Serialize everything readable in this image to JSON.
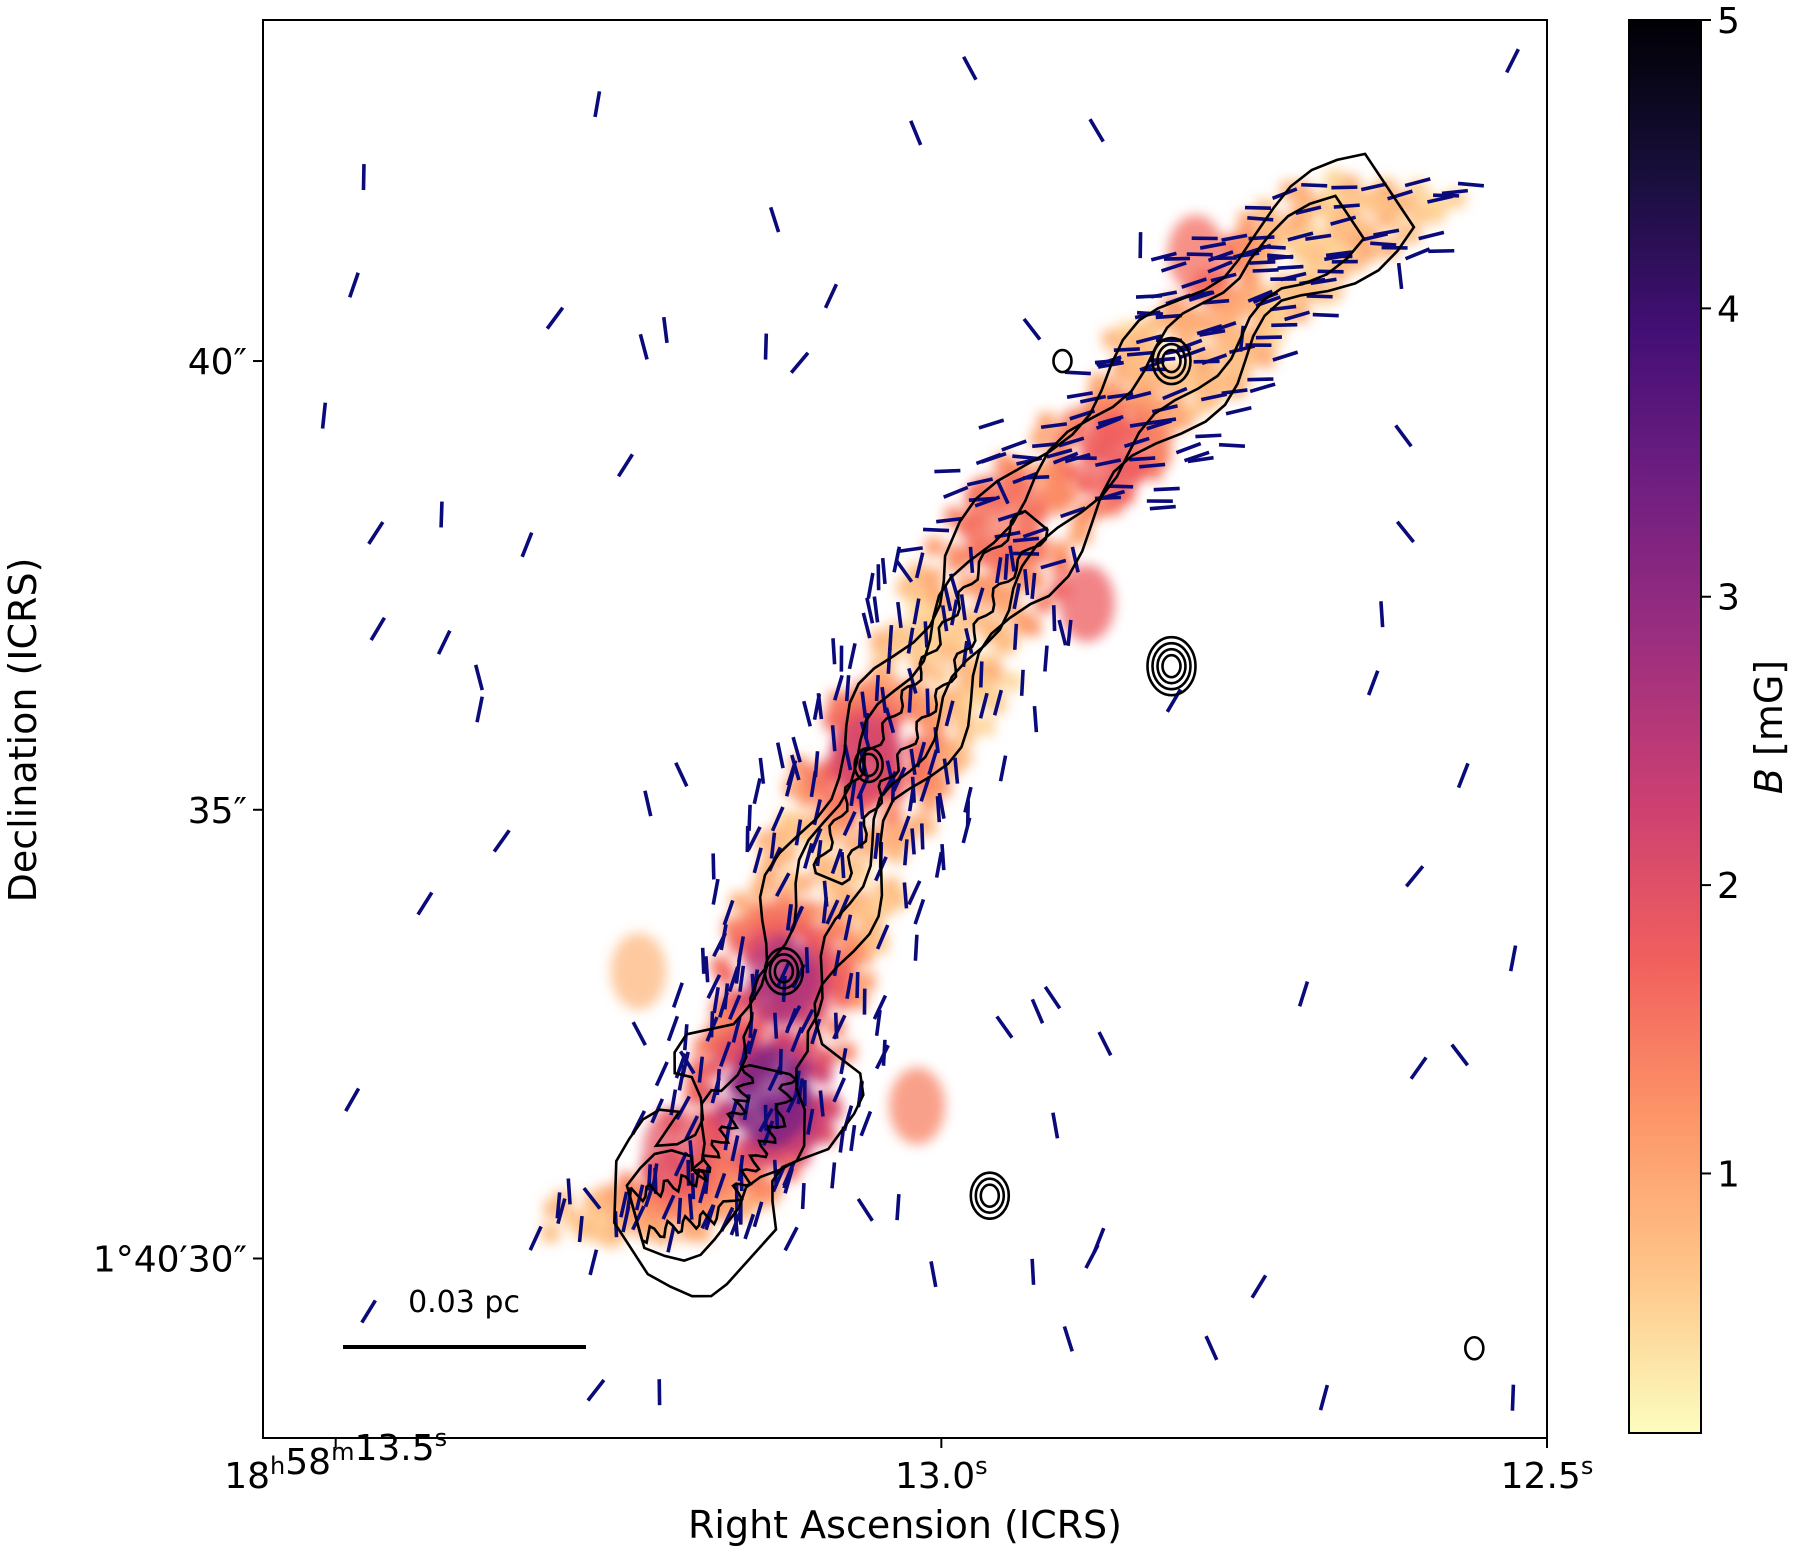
{
  "chart_data": {
    "type": "heatmap",
    "title": "",
    "xlabel": "Right Ascension (ICRS)",
    "ylabel": "Declination (ICRS)",
    "x_ticks": [
      {
        "value_s": 13.5,
        "prefix": "18",
        "h": "h",
        "mid": "58",
        "m": "m",
        "sec": "13.5",
        "s": "s"
      },
      {
        "value_s": 13.0,
        "prefix": "",
        "h": "",
        "mid": "",
        "m": "",
        "sec": "13.0",
        "s": "s"
      },
      {
        "value_s": 12.5,
        "prefix": "",
        "h": "",
        "mid": "",
        "m": "",
        "sec": "12.5",
        "s": "s"
      }
    ],
    "y_ticks": [
      {
        "value_arcsec": 40,
        "label": "40″"
      },
      {
        "value_arcsec": 35,
        "label": "35″"
      },
      {
        "value_arcsec": 30,
        "label": "1°40′30″"
      }
    ],
    "xlim_s": [
      13.56,
      12.5
    ],
    "ylim_arcsec": [
      28.0,
      43.8
    ],
    "colorbar": {
      "label": "B [mG]",
      "label_italic": "B",
      "label_unit": " [mG]",
      "range": [
        0.1,
        5
      ],
      "ticks": [
        1,
        2,
        3,
        4,
        5
      ],
      "tick_labels": [
        "1",
        "2",
        "3",
        "4",
        "5"
      ],
      "colormap": "magma_r",
      "stops": [
        "#fcfdbf",
        "#fec68a",
        "#fd9668",
        "#f1605d",
        "#cd4071",
        "#9e2f7f",
        "#721f81",
        "#440f76",
        "#180f3d",
        "#000004"
      ]
    },
    "scale_bar": {
      "label": "0.03 pc"
    },
    "vector_color": "#0a0a7a",
    "contour_color": "#000000",
    "filament_ridge": [
      {
        "ra": 12.63,
        "dec": 41.9
      },
      {
        "ra": 12.73,
        "dec": 41.0
      },
      {
        "ra": 12.8,
        "dec": 40.0
      },
      {
        "ra": 12.88,
        "dec": 38.9
      },
      {
        "ra": 12.96,
        "dec": 37.6
      },
      {
        "ra": 13.01,
        "dec": 36.4
      },
      {
        "ra": 13.06,
        "dec": 35.3
      },
      {
        "ra": 13.1,
        "dec": 34.0
      },
      {
        "ra": 13.13,
        "dec": 32.8
      },
      {
        "ra": 13.15,
        "dec": 31.6
      },
      {
        "ra": 13.19,
        "dec": 30.7
      },
      {
        "ra": 13.27,
        "dec": 30.4
      }
    ],
    "field_strength_blobs": [
      {
        "ra": 12.79,
        "dec": 41.2,
        "B": 1.6,
        "r": 0.7
      },
      {
        "ra": 12.86,
        "dec": 38.9,
        "B": 1.7,
        "r": 0.8
      },
      {
        "ra": 12.95,
        "dec": 38.2,
        "B": 1.5,
        "r": 0.9
      },
      {
        "ra": 12.88,
        "dec": 37.3,
        "B": 1.8,
        "r": 0.7
      },
      {
        "ra": 13.06,
        "dec": 35.6,
        "B": 2.1,
        "r": 0.8
      },
      {
        "ra": 13.13,
        "dec": 33.1,
        "B": 2.6,
        "r": 0.8
      },
      {
        "ra": 13.14,
        "dec": 31.8,
        "B": 3.2,
        "r": 0.9
      },
      {
        "ra": 13.22,
        "dec": 31.2,
        "B": 1.9,
        "r": 0.8
      },
      {
        "ra": 13.25,
        "dec": 33.2,
        "B": 0.8,
        "r": 0.7
      },
      {
        "ra": 13.02,
        "dec": 31.7,
        "B": 1.4,
        "r": 0.7
      }
    ],
    "compact_sources": [
      {
        "ra": 12.81,
        "dec": 40.0,
        "rings": 3
      },
      {
        "ra": 12.81,
        "dec": 36.6,
        "rings": 4
      },
      {
        "ra": 13.13,
        "dec": 33.2,
        "rings": 3
      },
      {
        "ra": 12.96,
        "dec": 30.7,
        "rings": 3
      },
      {
        "ra": 13.06,
        "dec": 35.5,
        "rings": 2
      },
      {
        "ra": 12.56,
        "dec": 29.0,
        "rings": 1
      },
      {
        "ra": 12.9,
        "dec": 40.0,
        "rings": 1
      }
    ]
  }
}
